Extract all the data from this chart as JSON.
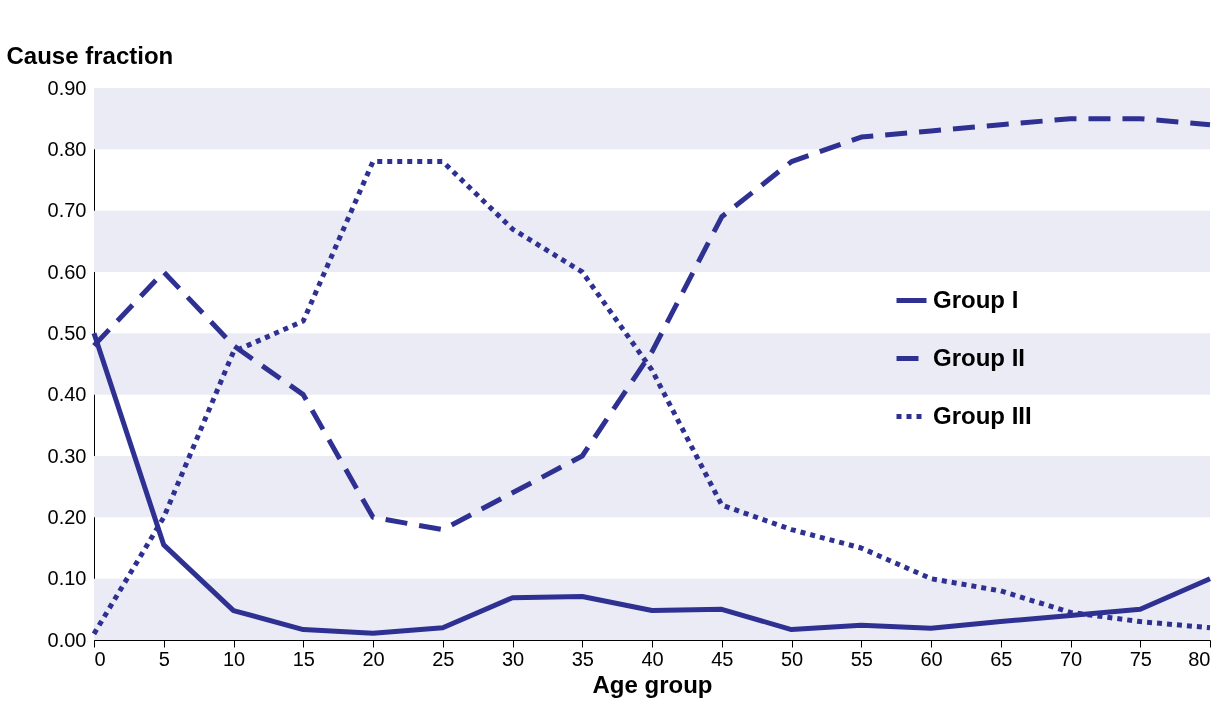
{
  "chart_data": {
    "type": "line",
    "xlabel": "Age group",
    "ylabel": "Cause fraction",
    "x": [
      0,
      5,
      10,
      15,
      20,
      25,
      30,
      35,
      40,
      45,
      50,
      55,
      60,
      65,
      70,
      75,
      80
    ],
    "xlim": [
      0,
      80
    ],
    "xticks": [
      0,
      5,
      10,
      15,
      20,
      25,
      30,
      35,
      40,
      45,
      50,
      55,
      60,
      65,
      70,
      75,
      80
    ],
    "ylim": [
      0,
      0.9
    ],
    "yticks": [
      {
        "value": 0,
        "label": "0.00"
      },
      {
        "value": 0.1,
        "label": "0.10"
      },
      {
        "value": 0.2,
        "label": "0.20"
      },
      {
        "value": 0.3,
        "label": "0.30"
      },
      {
        "value": 0.4,
        "label": "0.40"
      },
      {
        "value": 0.5,
        "label": "0.50"
      },
      {
        "value": 0.6,
        "label": "0.60"
      },
      {
        "value": 0.7,
        "label": "0.70"
      },
      {
        "value": 0.8,
        "label": "0.80"
      },
      {
        "value": 0.9,
        "label": "0.90"
      }
    ],
    "bands": [
      {
        "axis": "y",
        "from": 0,
        "to": 0.1,
        "color": "#ebebf5"
      },
      {
        "axis": "y",
        "from": 0.2,
        "to": 0.3,
        "color": "#ebebf5"
      },
      {
        "axis": "y",
        "from": 0.4,
        "to": 0.5,
        "color": "#ebebf5"
      },
      {
        "axis": "y",
        "from": 0.6,
        "to": 0.7,
        "color": "#ebebf5"
      },
      {
        "axis": "y",
        "from": 0.8,
        "to": 0.9,
        "color": "#ebebf5"
      }
    ],
    "legend": "right",
    "marker": "none",
    "series": [
      {
        "name": "Group I",
        "color": "#2e3192",
        "line_style": "solid",
        "values": [
          0.5,
          0.155,
          0.048,
          0.017,
          0.011,
          0.02,
          0.069,
          0.071,
          0.048,
          0.05,
          0.017,
          0.024,
          0.019,
          0.03,
          0.04,
          0.05,
          0.1
        ]
      },
      {
        "name": "Group II",
        "color": "#2e3192",
        "line_style": "dashed",
        "values": [
          0.48,
          0.6,
          0.48,
          0.4,
          0.2,
          0.18,
          0.24,
          0.3,
          0.47,
          0.69,
          0.78,
          0.82,
          0.83,
          0.84,
          0.85,
          0.85,
          0.84
        ]
      },
      {
        "name": "Group III",
        "color": "#2e3192",
        "line_style": "dotted",
        "values": [
          0.01,
          0.2,
          0.47,
          0.52,
          0.78,
          0.78,
          0.67,
          0.6,
          0.44,
          0.22,
          0.18,
          0.15,
          0.1,
          0.08,
          0.045,
          0.03,
          0.02
        ]
      }
    ]
  }
}
